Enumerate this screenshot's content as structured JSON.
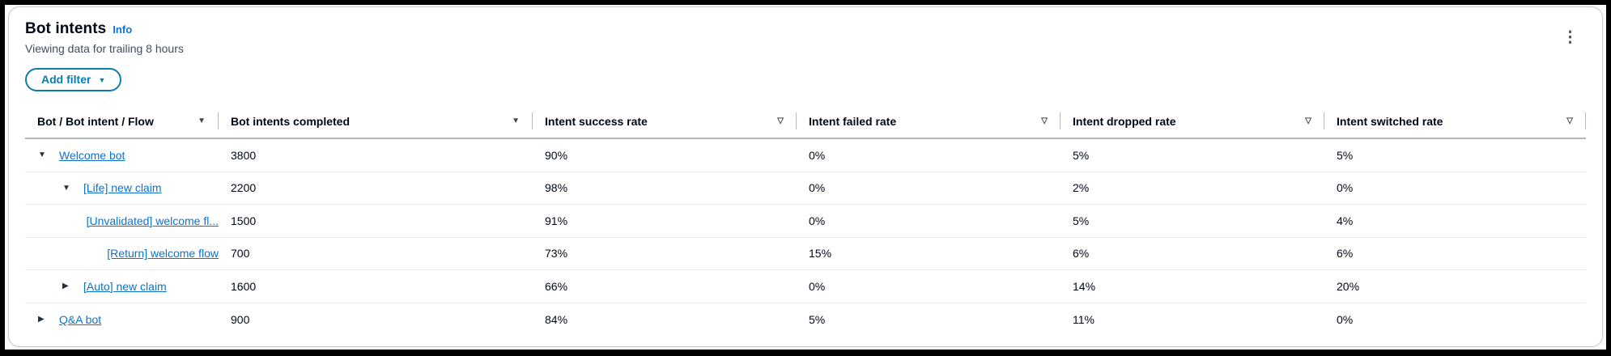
{
  "panel": {
    "title": "Bot intents",
    "info_label": "Info",
    "subtitle": "Viewing data for trailing 8 hours",
    "add_filter_label": "Add filter",
    "add_filter_caret": "▼",
    "kebab_icon": "⋮"
  },
  "colors": {
    "link_blue": "#0d72d0",
    "filter_button_teal": "#0b7dac",
    "text_ink": "#000716",
    "text_muted": "#414d5c"
  },
  "table": {
    "columns": [
      {
        "label": "Bot / Bot intent / Flow",
        "filter_icon": "filled"
      },
      {
        "label": "Bot intents completed",
        "filter_icon": "filled"
      },
      {
        "label": "Intent success rate",
        "filter_icon": "outline"
      },
      {
        "label": "Intent failed rate",
        "filter_icon": "outline"
      },
      {
        "label": "Intent dropped rate",
        "filter_icon": "outline"
      },
      {
        "label": "Intent switched rate",
        "filter_icon": "outline"
      }
    ],
    "icon_glyphs": {
      "filled": "▼",
      "outline": "▽",
      "expanded": "▼",
      "collapsed": "▶"
    },
    "rows": [
      {
        "level": 0,
        "expander": "expanded",
        "name": "Welcome bot",
        "completed": "3800",
        "success": "90%",
        "failed": "0%",
        "dropped": "5%",
        "switched": "5%"
      },
      {
        "level": 1,
        "expander": "expanded",
        "name": "[Life] new claim",
        "completed": "2200",
        "success": "98%",
        "failed": "0%",
        "dropped": "2%",
        "switched": "0%"
      },
      {
        "level": 2,
        "expander": "none",
        "name": "[Unvalidated] welcome fl...",
        "completed": "1500",
        "success": "91%",
        "failed": "0%",
        "dropped": "5%",
        "switched": "4%"
      },
      {
        "level": 2,
        "expander": "none",
        "name": "[Return] welcome flow",
        "completed": "700",
        "success": "73%",
        "failed": "15%",
        "dropped": "6%",
        "switched": "6%"
      },
      {
        "level": 1,
        "expander": "collapsed",
        "name": "[Auto] new claim",
        "completed": "1600",
        "success": "66%",
        "failed": "0%",
        "dropped": "14%",
        "switched": "20%"
      },
      {
        "level": 0,
        "expander": "collapsed",
        "name": "Q&A bot",
        "completed": "900",
        "success": "84%",
        "failed": "5%",
        "dropped": "11%",
        "switched": "0%"
      }
    ]
  }
}
